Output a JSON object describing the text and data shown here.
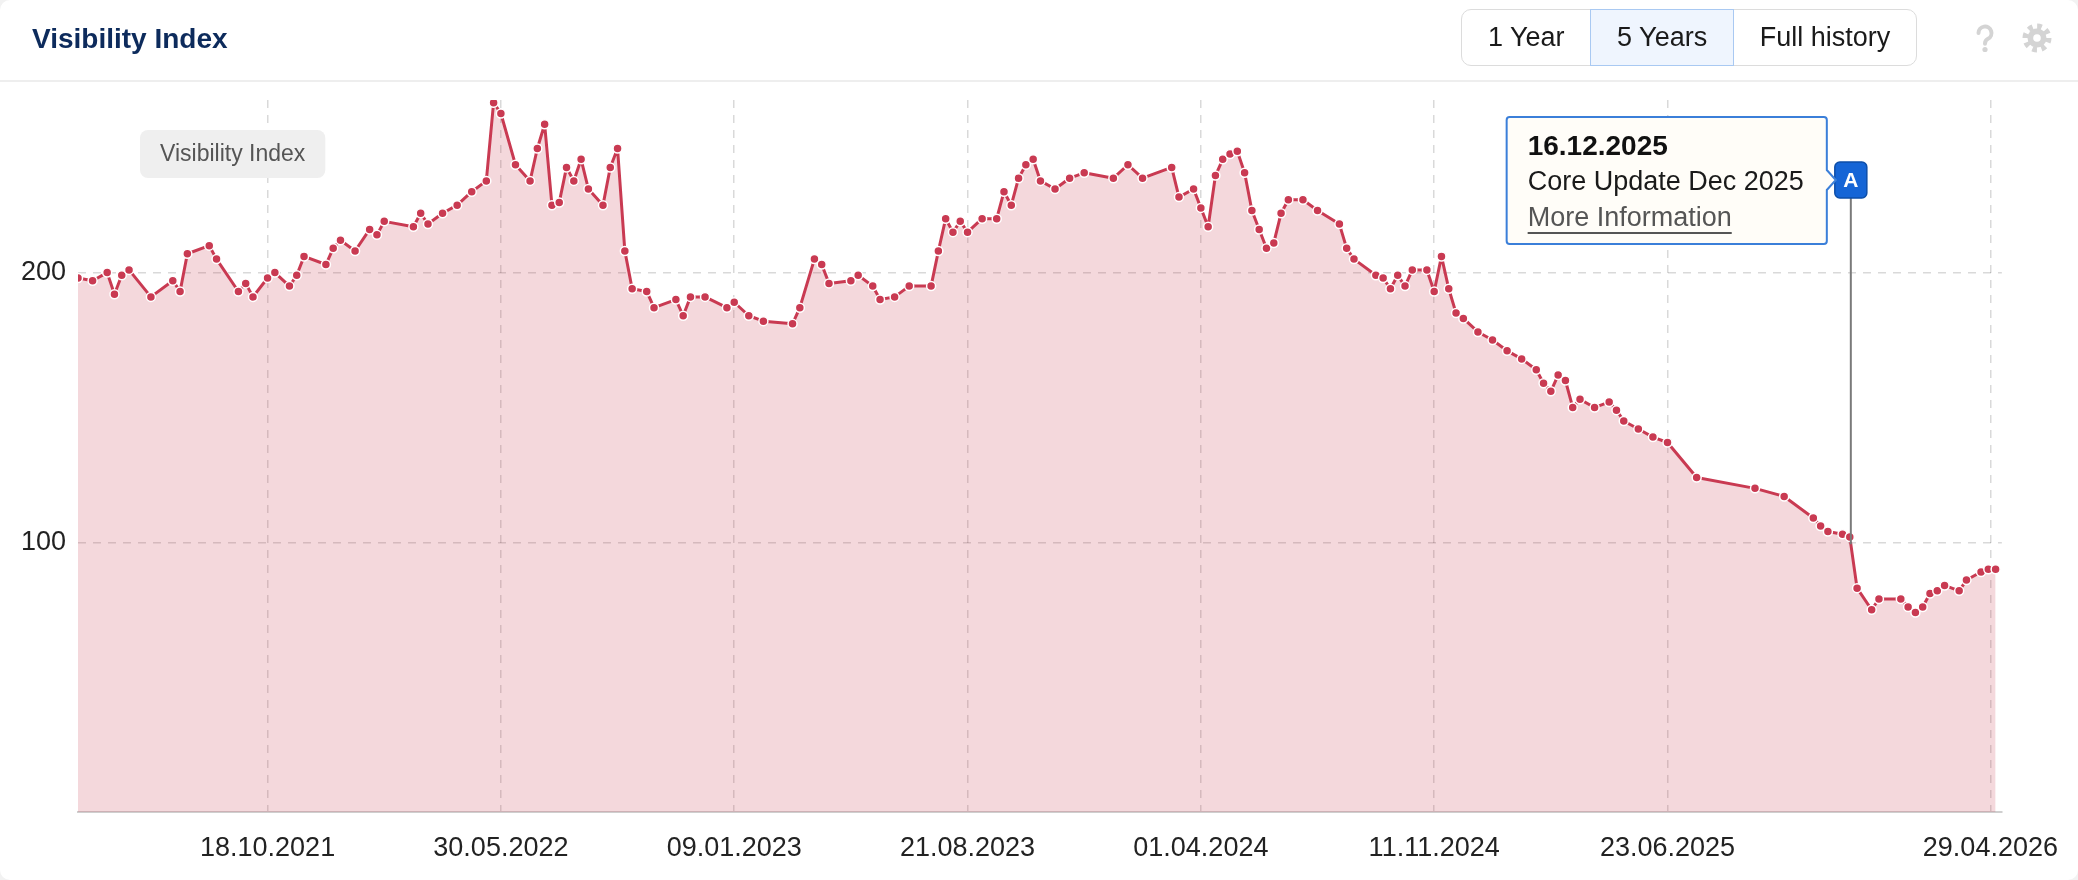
{
  "chart_data": {
    "type": "area",
    "title": "Visibility Index",
    "annotations": [
      "Visibility Index",
      "1 Year",
      "5 Years",
      "Full history",
      "16.12.2025",
      "Core Update Dec 2025",
      "More Information",
      {
        "text": "A",
        "x": "2025-12-16"
      }
    ],
    "x": [
      "2021-04-19",
      "2021-05-03",
      "2021-05-17",
      "2021-05-24",
      "2021-05-31",
      "2021-06-07",
      "2021-06-28",
      "2021-07-19",
      "2021-07-26",
      "2021-08-02",
      "2021-08-23",
      "2021-08-30",
      "2021-09-20",
      "2021-09-27",
      "2021-10-04",
      "2021-10-18",
      "2021-10-25",
      "2021-11-08",
      "2021-11-15",
      "2021-11-22",
      "2021-12-13",
      "2021-12-20",
      "2021-12-27",
      "2022-01-10",
      "2022-01-24",
      "2022-01-31",
      "2022-02-07",
      "2022-03-07",
      "2022-03-14",
      "2022-03-21",
      "2022-04-04",
      "2022-04-18",
      "2022-05-02",
      "2022-05-16",
      "2022-05-23",
      "2022-05-30",
      "2022-06-13",
      "2022-06-27",
      "2022-07-04",
      "2022-07-11",
      "2022-07-18",
      "2022-07-25",
      "2022-08-01",
      "2022-08-08",
      "2022-08-15",
      "2022-08-22",
      "2022-09-05",
      "2022-09-12",
      "2022-09-19",
      "2022-09-26",
      "2022-10-03",
      "2022-10-17",
      "2022-10-24",
      "2022-11-14",
      "2022-11-21",
      "2022-11-28",
      "2022-12-12",
      "2023-01-02",
      "2023-01-09",
      "2023-01-23",
      "2023-02-06",
      "2023-03-06",
      "2023-03-13",
      "2023-03-27",
      "2023-04-03",
      "2023-04-10",
      "2023-05-01",
      "2023-05-08",
      "2023-05-22",
      "2023-05-29",
      "2023-06-12",
      "2023-06-26",
      "2023-07-17",
      "2023-07-24",
      "2023-07-31",
      "2023-08-07",
      "2023-08-14",
      "2023-08-21",
      "2023-09-04",
      "2023-09-18",
      "2023-09-25",
      "2023-10-02",
      "2023-10-09",
      "2023-10-16",
      "2023-10-23",
      "2023-10-30",
      "2023-11-13",
      "2023-11-27",
      "2023-12-11",
      "2024-01-08",
      "2024-01-22",
      "2024-02-05",
      "2024-03-04",
      "2024-03-11",
      "2024-03-25",
      "2024-04-01",
      "2024-04-08",
      "2024-04-15",
      "2024-04-22",
      "2024-04-29",
      "2024-05-06",
      "2024-05-13",
      "2024-05-20",
      "2024-05-27",
      "2024-06-03",
      "2024-06-10",
      "2024-06-17",
      "2024-06-24",
      "2024-07-08",
      "2024-07-22",
      "2024-08-12",
      "2024-08-19",
      "2024-08-26",
      "2024-09-16",
      "2024-09-23",
      "2024-09-30",
      "2024-10-07",
      "2024-10-14",
      "2024-10-21",
      "2024-11-04",
      "2024-11-11",
      "2024-11-18",
      "2024-11-25",
      "2024-12-02",
      "2024-12-09",
      "2024-12-23",
      "2025-01-06",
      "2025-01-20",
      "2025-02-03",
      "2025-02-17",
      "2025-02-24",
      "2025-03-03",
      "2025-03-10",
      "2025-03-17",
      "2025-03-24",
      "2025-03-31",
      "2025-04-14",
      "2025-04-28",
      "2025-05-05",
      "2025-05-12",
      "2025-05-26",
      "2025-06-09",
      "2025-06-23",
      "2025-07-21",
      "2025-09-15",
      "2025-10-13",
      "2025-11-10",
      "2025-11-17",
      "2025-11-24",
      "2025-12-08",
      "2025-12-15",
      "2025-12-22",
      "2026-01-05",
      "2026-01-12",
      "2026-02-02",
      "2026-02-09",
      "2026-02-16",
      "2026-02-23",
      "2026-03-02",
      "2026-03-09",
      "2026-03-16",
      "2026-03-30",
      "2026-04-06",
      "2026-04-20",
      "2026-04-27",
      "2026-05-04"
    ],
    "values": [
      198,
      197,
      200,
      192,
      199,
      201,
      191,
      197,
      193,
      207,
      210,
      205,
      193,
      196,
      191,
      198,
      200,
      195,
      199,
      206,
      203,
      209,
      212,
      208,
      216,
      214,
      219,
      217,
      222,
      218,
      222,
      225,
      230,
      234,
      263,
      259,
      240,
      234,
      246,
      255,
      225,
      226,
      239,
      234,
      242,
      231,
      225,
      239,
      246,
      208,
      194,
      193,
      187,
      190,
      184,
      191,
      191,
      187,
      189,
      184,
      182,
      181,
      187,
      205,
      203,
      196,
      197,
      199,
      195,
      190,
      191,
      195,
      195,
      208,
      220,
      215,
      219,
      215,
      220,
      220,
      230,
      225,
      235,
      240,
      242,
      234,
      231,
      235,
      237,
      235,
      240,
      235,
      239,
      228,
      231,
      224,
      217,
      236,
      242,
      244,
      245,
      237,
      223,
      216,
      209,
      211,
      222,
      227,
      227,
      223,
      218,
      209,
      205,
      199,
      198,
      194,
      199,
      195,
      201,
      201,
      193,
      206,
      194,
      185,
      183,
      178,
      175,
      171,
      168,
      164,
      159,
      156,
      162,
      160,
      150,
      153,
      150,
      152,
      149,
      145,
      142,
      139,
      137,
      124,
      120,
      117,
      109,
      106,
      104,
      103,
      102,
      83,
      75,
      79,
      79,
      76,
      74,
      76,
      81,
      82,
      84,
      82,
      86,
      89,
      90,
      90
    ],
    "color": "#c93a52",
    "xlim": [
      "2021-04-19",
      "2026-05-10"
    ],
    "xticks": [
      {
        "value": "2021-10-18",
        "label": "18.10.2021"
      },
      {
        "value": "2022-05-30",
        "label": "30.05.2022"
      },
      {
        "value": "2023-01-09",
        "label": "09.01.2023"
      },
      {
        "value": "2023-08-21",
        "label": "21.08.2023"
      },
      {
        "value": "2024-04-01",
        "label": "01.04.2024"
      },
      {
        "value": "2024-11-11",
        "label": "11.11.2024"
      },
      {
        "value": "2025-06-23",
        "label": "23.06.2025"
      },
      {
        "value": "2026-04-29",
        "label": "29.04.2026"
      }
    ],
    "ylim": [
      0,
      264
    ],
    "yticks": [
      100,
      200
    ],
    "grid": true,
    "marker": "circle",
    "line_style": "solid"
  }
}
